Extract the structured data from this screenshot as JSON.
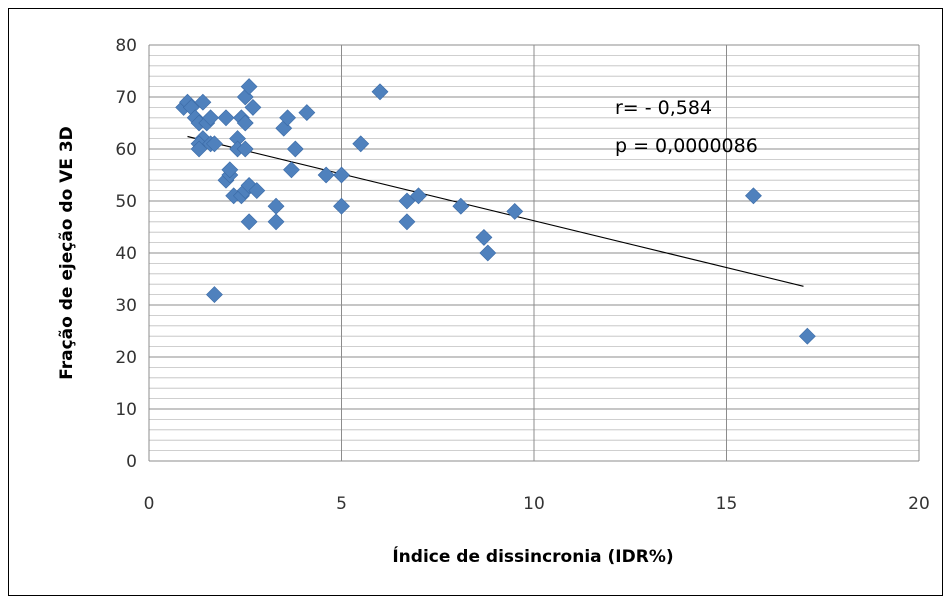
{
  "chart_data": {
    "type": "scatter",
    "xlabel": "Índice de dissincronia (IDR%)",
    "ylabel": "Fração de ejeção do VE 3D",
    "xlim": [
      0,
      20
    ],
    "ylim": [
      0,
      80
    ],
    "x_ticks": [
      "0",
      "5",
      "10",
      "15",
      "20"
    ],
    "y_ticks": [
      "0",
      "10",
      "20",
      "30",
      "40",
      "50",
      "60",
      "70",
      "80"
    ],
    "grid": {
      "major_x": true,
      "major_y": true,
      "minor_y": true
    },
    "marker": "diamond",
    "marker_color": "#4F81BD",
    "trendline": {
      "type": "linear",
      "x": [
        1.0,
        17.0
      ],
      "y": [
        62.4,
        33.6
      ],
      "color": "#000000"
    },
    "annotations": [
      "r= - 0,584",
      "p = 0,0000086"
    ],
    "points": [
      {
        "x": 0.9,
        "y": 68
      },
      {
        "x": 1.0,
        "y": 69
      },
      {
        "x": 1.1,
        "y": 68
      },
      {
        "x": 1.2,
        "y": 66
      },
      {
        "x": 1.3,
        "y": 65
      },
      {
        "x": 1.4,
        "y": 69
      },
      {
        "x": 1.4,
        "y": 62
      },
      {
        "x": 1.5,
        "y": 65
      },
      {
        "x": 1.6,
        "y": 66
      },
      {
        "x": 1.3,
        "y": 61
      },
      {
        "x": 1.3,
        "y": 60
      },
      {
        "x": 1.6,
        "y": 61
      },
      {
        "x": 1.7,
        "y": 61
      },
      {
        "x": 1.7,
        "y": 32
      },
      {
        "x": 2.0,
        "y": 66
      },
      {
        "x": 2.0,
        "y": 54
      },
      {
        "x": 2.1,
        "y": 55
      },
      {
        "x": 2.1,
        "y": 56
      },
      {
        "x": 2.2,
        "y": 51
      },
      {
        "x": 2.3,
        "y": 62
      },
      {
        "x": 2.3,
        "y": 60
      },
      {
        "x": 2.4,
        "y": 66
      },
      {
        "x": 2.4,
        "y": 51
      },
      {
        "x": 2.5,
        "y": 70
      },
      {
        "x": 2.5,
        "y": 65
      },
      {
        "x": 2.5,
        "y": 60
      },
      {
        "x": 2.5,
        "y": 52
      },
      {
        "x": 2.6,
        "y": 72
      },
      {
        "x": 2.6,
        "y": 53
      },
      {
        "x": 2.6,
        "y": 46
      },
      {
        "x": 2.7,
        "y": 68
      },
      {
        "x": 2.8,
        "y": 52
      },
      {
        "x": 3.3,
        "y": 49
      },
      {
        "x": 3.3,
        "y": 46
      },
      {
        "x": 3.5,
        "y": 64
      },
      {
        "x": 3.6,
        "y": 66
      },
      {
        "x": 3.7,
        "y": 56
      },
      {
        "x": 3.8,
        "y": 60
      },
      {
        "x": 4.1,
        "y": 67
      },
      {
        "x": 4.6,
        "y": 55
      },
      {
        "x": 5.0,
        "y": 55
      },
      {
        "x": 5.0,
        "y": 49
      },
      {
        "x": 5.5,
        "y": 61
      },
      {
        "x": 6.0,
        "y": 71
      },
      {
        "x": 6.7,
        "y": 50
      },
      {
        "x": 6.7,
        "y": 46
      },
      {
        "x": 7.0,
        "y": 51
      },
      {
        "x": 8.1,
        "y": 49
      },
      {
        "x": 8.7,
        "y": 43
      },
      {
        "x": 8.8,
        "y": 40
      },
      {
        "x": 9.5,
        "y": 48
      },
      {
        "x": 15.7,
        "y": 51
      },
      {
        "x": 17.1,
        "y": 24
      }
    ]
  }
}
